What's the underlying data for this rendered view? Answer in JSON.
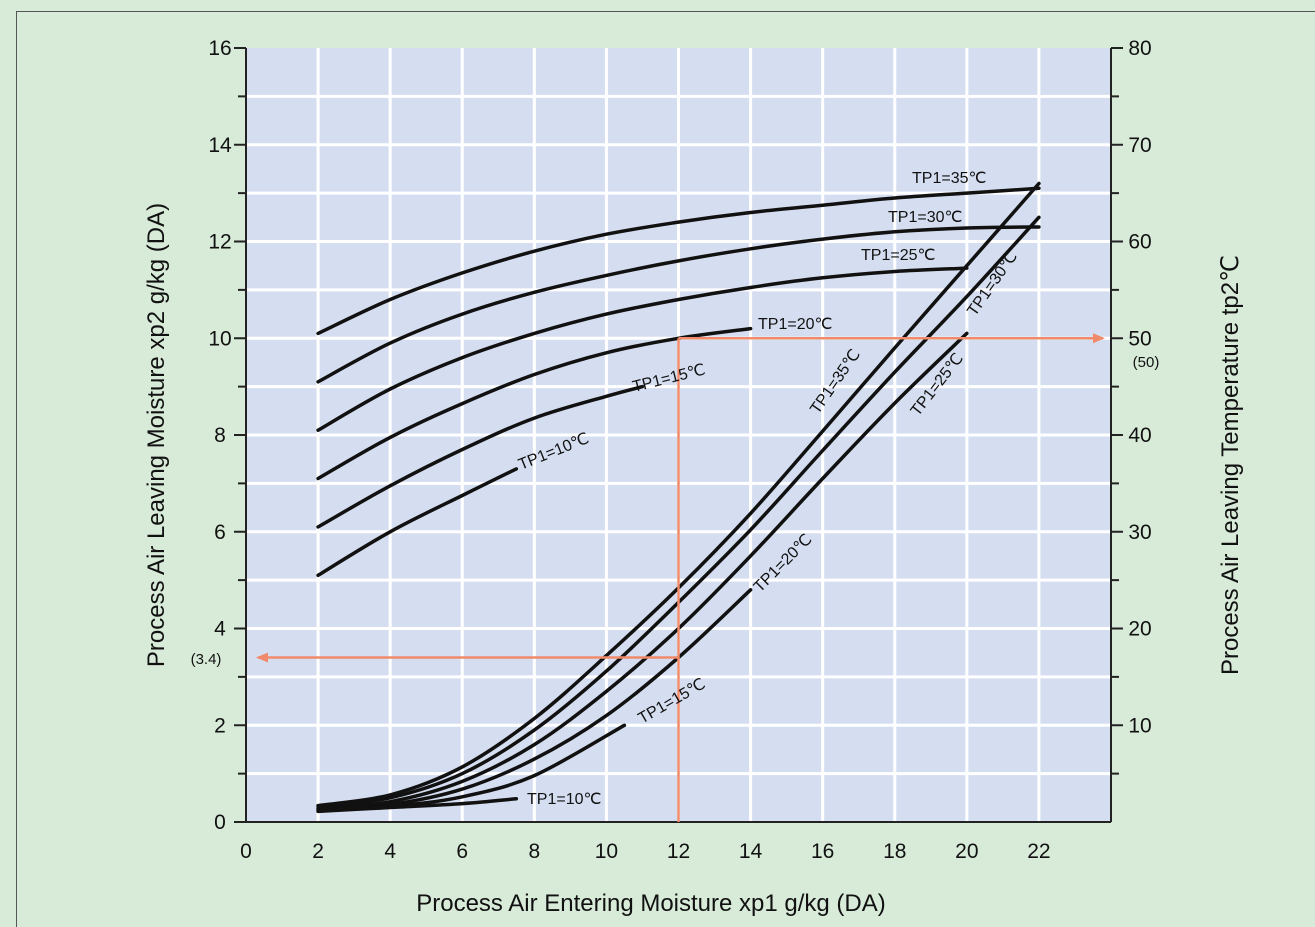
{
  "chart_data": {
    "type": "line",
    "xlabel": "Process Air Entering Moisture xp1 g/kg (DA)",
    "ylabel_left": "Process Air Leaving Moisture xp2 g/kg (DA)",
    "ylabel_right": "Process Air Leaving Temperature tp2℃",
    "x_ticks": [
      "0",
      "2",
      "4",
      "6",
      "8",
      "10",
      "12",
      "14",
      "16",
      "18",
      "20",
      "22"
    ],
    "y_left_ticks": [
      "0",
      "2",
      "4",
      "6",
      "8",
      "10",
      "12",
      "14",
      "16"
    ],
    "y_right_ticks": [
      "10",
      "20",
      "30",
      "40",
      "50",
      "60",
      "70",
      "80"
    ],
    "xlim": [
      0,
      24
    ],
    "ylim_left": [
      0,
      16
    ],
    "ylim_right": [
      0,
      80
    ],
    "grid": true,
    "colors": {
      "plot_bg": "#d5def0",
      "page_bg": "#d8ebd9",
      "curve": "#111111",
      "example": "#f08a6a"
    },
    "moisture_series": [
      {
        "name": "TP1=35℃",
        "x": [
          2,
          4,
          6,
          8,
          10,
          12,
          14,
          16,
          18,
          20,
          22
        ],
        "y": [
          10.1,
          10.8,
          11.35,
          11.8,
          12.15,
          12.4,
          12.6,
          12.75,
          12.9,
          13.0,
          13.1
        ]
      },
      {
        "name": "TP1=30℃",
        "x": [
          2,
          4,
          6,
          8,
          10,
          12,
          14,
          16,
          18,
          20,
          22
        ],
        "y": [
          9.1,
          9.9,
          10.5,
          10.95,
          11.3,
          11.6,
          11.85,
          12.05,
          12.2,
          12.28,
          12.3
        ]
      },
      {
        "name": "TP1=25℃",
        "x": [
          2,
          4,
          6,
          8,
          10,
          12,
          14,
          16,
          18,
          20
        ],
        "y": [
          8.1,
          8.95,
          9.6,
          10.1,
          10.5,
          10.8,
          11.05,
          11.25,
          11.38,
          11.45
        ]
      },
      {
        "name": "TP1=20℃",
        "x": [
          2,
          4,
          6,
          8,
          10,
          12,
          14
        ],
        "y": [
          7.1,
          7.95,
          8.65,
          9.25,
          9.7,
          10.0,
          10.2
        ]
      },
      {
        "name": "TP1=15℃",
        "x": [
          2,
          4,
          6,
          8,
          10,
          11
        ],
        "y": [
          6.1,
          6.95,
          7.7,
          8.35,
          8.8,
          9.0
        ]
      },
      {
        "name": "TP1=10℃",
        "x": [
          2,
          4,
          6,
          7.5
        ],
        "y": [
          5.1,
          6.0,
          6.75,
          7.3
        ]
      }
    ],
    "temperature_series": [
      {
        "name": "TP1=35℃",
        "x": [
          2,
          4,
          6,
          8,
          10,
          12,
          14,
          16,
          18,
          20,
          22
        ],
        "y": [
          1.7,
          2.8,
          5.7,
          10.7,
          17.2,
          24.2,
          31.9,
          40.4,
          49.0,
          57.5,
          66.0
        ]
      },
      {
        "name": "TP1=30℃",
        "x": [
          2,
          4,
          6,
          8,
          10,
          12,
          14,
          16,
          18,
          20,
          22
        ],
        "y": [
          1.6,
          2.5,
          5.0,
          9.5,
          15.6,
          22.7,
          30.2,
          38.4,
          46.5,
          54.3,
          62.5
        ]
      },
      {
        "name": "TP1=25℃",
        "x": [
          2,
          4,
          6,
          8,
          10,
          12,
          14,
          16,
          18,
          20
        ],
        "y": [
          1.4,
          2.1,
          4.2,
          8.0,
          13.5,
          20.0,
          27.5,
          35.5,
          43.3,
          50.5
        ]
      },
      {
        "name": "TP1=20℃",
        "x": [
          2,
          4,
          6,
          8,
          10,
          12,
          14
        ],
        "y": [
          1.3,
          1.8,
          3.4,
          6.5,
          11.0,
          17.0,
          24.0
        ]
      },
      {
        "name": "TP1=15℃",
        "x": [
          2,
          4,
          6,
          8,
          10.5
        ],
        "y": [
          1.2,
          1.6,
          2.6,
          4.8,
          10.0
        ]
      },
      {
        "name": "TP1=10℃",
        "x": [
          2,
          4,
          6,
          7.5
        ],
        "y": [
          1.1,
          1.5,
          1.9,
          2.4
        ]
      }
    ],
    "example_note_left": "(3.4)",
    "example_note_right": "(50)",
    "example": {
      "x": 12,
      "xp2": 3.4,
      "tp2": 50
    }
  }
}
